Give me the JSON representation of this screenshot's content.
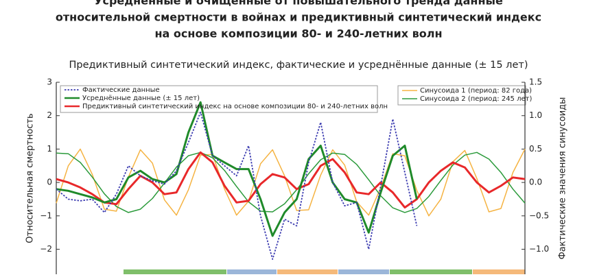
{
  "chart_data": {
    "type": "line",
    "title_lines": [
      "Усреднённые и очищенные от повышательного тренда данные",
      "относительной смертности в войнах и предиктивный синтетический индекс",
      "на основе композиции 80- и 240-летних волн"
    ],
    "subtitle": "Предиктивный синтетический индекс, фактические и усреднённые данные (± 15 лет)",
    "ylabel": "Относительная смертность",
    "y2label": "Фактические значения синусоиды",
    "ylim": [
      -2.7,
      3
    ],
    "yticks": [
      3,
      2,
      1,
      0,
      {
        "value": -1,
        "label": "−1"
      },
      {
        "value": -2,
        "label": "−2"
      }
    ],
    "y2lim": [
      -1.35,
      1.5
    ],
    "y2ticks": [
      1.5,
      {
        "value": 1.0,
        "label": "1.0"
      },
      0.5,
      {
        "value": 0.0,
        "label": "0.0"
      },
      {
        "value": -0.5,
        "label": "−0.5"
      },
      {
        "value": -1.0,
        "label": "−1.0"
      }
    ],
    "categories": [
      null,
      null,
      null,
      null,
      null,
      null,
      null,
      null,
      null,
      null,
      null,
      null,
      null,
      null,
      null,
      null,
      null,
      null,
      null,
      null,
      null,
      null,
      null,
      null,
      null,
      null,
      null,
      null,
      null,
      null,
      null,
      null,
      null,
      null,
      null,
      null,
      null,
      null,
      null,
      null
    ],
    "series": [
      {
        "name": "Фактические данные",
        "color": "#3b3bb0",
        "dash": true,
        "width": 1.8,
        "values": [
          -0.2,
          -0.5,
          -0.55,
          -0.5,
          -0.9,
          -0.35,
          0.5,
          0.2,
          0.05,
          -0.05,
          0.35,
          1.2,
          2.1,
          0.8,
          0.5,
          0.2,
          1.1,
          -1.0,
          -2.3,
          -1.1,
          -1.3,
          0.6,
          1.8,
          0.0,
          -0.7,
          -0.6,
          -2.0,
          -0.1,
          1.9,
          0.3,
          -1.3,
          null,
          null,
          null,
          null,
          null,
          null,
          null,
          null,
          null
        ]
      },
      {
        "name": "Усреднённые данные (± 15 лет)",
        "color": "#1f8a2a",
        "width": 3,
        "values": [
          -0.2,
          -0.25,
          -0.35,
          -0.45,
          -0.6,
          -0.5,
          0.15,
          0.35,
          0.1,
          0.0,
          0.25,
          1.5,
          2.4,
          0.8,
          0.6,
          0.4,
          0.4,
          -0.5,
          -1.6,
          -0.9,
          -0.5,
          0.7,
          1.1,
          0.0,
          -0.5,
          -0.6,
          -1.5,
          -0.3,
          0.8,
          1.1,
          -0.5,
          null,
          null,
          null,
          null,
          null,
          null,
          null,
          null,
          null
        ]
      },
      {
        "name": "Предиктивный синтетический индекс на основе композиции 80- и 240-летних волн",
        "color": "#e8282a",
        "width": 3,
        "values": [
          0.1,
          0.0,
          -0.15,
          -0.35,
          -0.6,
          -0.65,
          -0.2,
          0.2,
          0.0,
          -0.35,
          -0.3,
          0.4,
          0.9,
          0.6,
          -0.1,
          -0.6,
          -0.55,
          -0.05,
          0.25,
          0.15,
          -0.2,
          -0.05,
          0.5,
          0.7,
          0.3,
          -0.3,
          -0.35,
          0.0,
          -0.3,
          -0.75,
          -0.5,
          0.0,
          0.35,
          0.6,
          0.45,
          0.0,
          -0.3,
          -0.1,
          0.15,
          0.1
        ]
      },
      {
        "name": "Синусоида 1 (период: 82 года)",
        "color": "#f5b342",
        "width": 1.5,
        "axis": "y2",
        "values": [
          -0.31,
          0.25,
          0.5,
          0.12,
          -0.4,
          -0.43,
          0.08,
          0.49,
          0.29,
          -0.26,
          -0.49,
          -0.11,
          0.41,
          0.42,
          -0.1,
          -0.49,
          -0.28,
          0.28,
          0.49,
          0.1,
          -0.42,
          -0.41,
          0.11,
          0.49,
          0.26,
          -0.29,
          -0.49,
          -0.08,
          0.43,
          0.4,
          -0.12,
          -0.5,
          -0.25,
          0.31,
          0.48,
          0.06,
          -0.44,
          -0.39,
          0.15,
          0.5
        ]
      },
      {
        "name": "Синусоида 2 (период: 245 лет)",
        "color": "#2a9a3a",
        "width": 1.5,
        "axis": "y2",
        "values": [
          0.44,
          0.43,
          0.3,
          0.08,
          -0.17,
          -0.36,
          -0.45,
          -0.4,
          -0.24,
          -0.01,
          0.23,
          0.4,
          0.45,
          0.37,
          0.18,
          -0.06,
          -0.29,
          -0.43,
          -0.44,
          -0.32,
          -0.11,
          0.13,
          0.34,
          0.44,
          0.42,
          0.27,
          0.04,
          -0.2,
          -0.38,
          -0.45,
          -0.39,
          -0.21,
          0.03,
          0.26,
          0.41,
          0.45,
          0.35,
          0.15,
          -0.1,
          -0.31
        ]
      }
    ]
  }
}
